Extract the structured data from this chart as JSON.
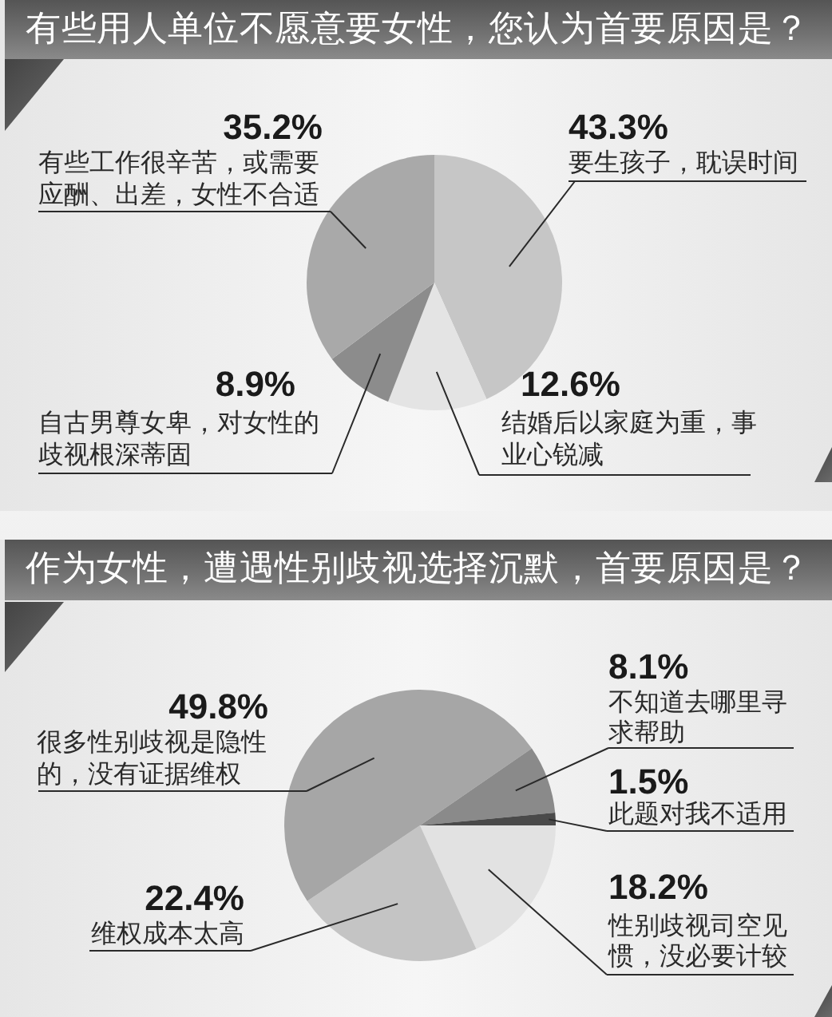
{
  "chart_data": [
    {
      "type": "pie",
      "title": "有些用人单位不愿意要女性，您认为首要原因是？",
      "categories": [
        "要生孩子，耽误时间",
        "结婚后以家庭为重，事业心锐减",
        "自古男尊女卑，对女性的歧视根深蒂固",
        "有些工作很辛苦，或需要应酬、出差，女性不合适"
      ],
      "values": [
        43.3,
        12.6,
        8.9,
        35.2
      ],
      "value_labels": [
        "43.3%",
        "12.6%",
        "8.9%",
        "35.2%"
      ],
      "colors": [
        "#c6c6c6",
        "#e4e4e4",
        "#8c8c8c",
        "#a9a9a9"
      ]
    },
    {
      "type": "pie",
      "title": "作为女性，遭遇性别歧视选择沉默，首要原因是？",
      "categories": [
        "性别歧视司空见惯，没必要计较",
        "维权成本太高",
        "很多性别歧视是隐性的，没有证据维权",
        "不知道去哪里寻求帮助",
        "此题对我不适用"
      ],
      "values": [
        18.2,
        22.4,
        49.8,
        8.1,
        1.5
      ],
      "value_labels": [
        "18.2%",
        "22.4%",
        "49.8%",
        "8.1%",
        "1.5%"
      ],
      "colors": [
        "#e2e2e2",
        "#c4c4c4",
        "#a6a6a6",
        "#8a8a8a",
        "#4a4a4a"
      ]
    }
  ]
}
